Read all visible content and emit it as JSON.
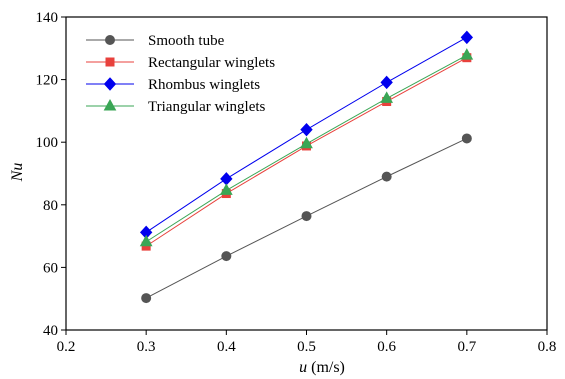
{
  "chart_data": {
    "type": "line",
    "x": [
      0.3,
      0.4,
      0.5,
      0.6,
      0.7
    ],
    "xlim": [
      0.2,
      0.8
    ],
    "ylim": [
      40,
      140
    ],
    "xticks": [
      "0.2",
      "0.3",
      "0.4",
      "0.5",
      "0.6",
      "0.7",
      "0.8"
    ],
    "yticks": [
      "40",
      "60",
      "80",
      "100",
      "120",
      "140"
    ],
    "xlabel_var": "u",
    "xlabel_unit": "(m/s)",
    "ylabel": "Nu",
    "grid": false,
    "legend_position": "top-left",
    "series": [
      {
        "name": "Smooth tube",
        "values": [
          50.2,
          63.6,
          76.4,
          89.0,
          101.2
        ],
        "color": "#555555",
        "marker": "circle"
      },
      {
        "name": "Rectangular winglets",
        "values": [
          66.8,
          83.6,
          98.8,
          113.0,
          127.0
        ],
        "color": "#e8413c",
        "marker": "square"
      },
      {
        "name": "Rhombus winglets",
        "values": [
          71.2,
          88.3,
          104.0,
          119.1,
          133.5
        ],
        "color": "#0000ee",
        "marker": "diamond"
      },
      {
        "name": "Triangular winglets",
        "values": [
          68.2,
          84.6,
          99.5,
          114.0,
          127.8
        ],
        "color": "#3aa655",
        "marker": "triangle"
      }
    ]
  }
}
